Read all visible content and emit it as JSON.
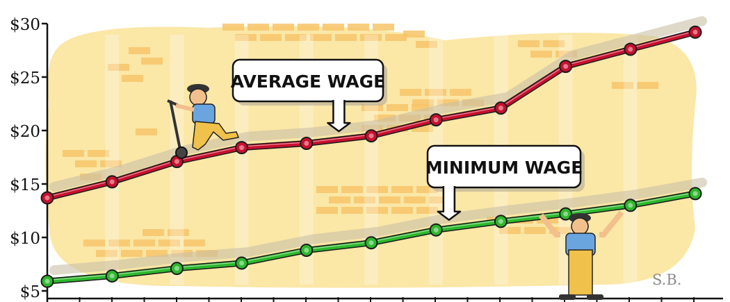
{
  "chart_data": {
    "type": "line",
    "x": [
      1,
      2,
      3,
      4,
      5,
      6,
      7,
      8,
      9,
      10,
      11
    ],
    "ylim": [
      5,
      30
    ],
    "yticks": [
      {
        "value": 5,
        "label": "$5"
      },
      {
        "value": 10,
        "label": "$10"
      },
      {
        "value": 15,
        "label": "$15"
      },
      {
        "value": 20,
        "label": "$20"
      },
      {
        "value": 25,
        "label": "$25"
      },
      {
        "value": 30,
        "label": "$30"
      }
    ],
    "grid": false,
    "series": [
      {
        "name": "AVERAGE WAGE",
        "color": "#c8102e",
        "values": [
          13.7,
          15.2,
          17.1,
          18.4,
          18.8,
          19.5,
          21.0,
          22.1,
          26.0,
          27.6,
          29.2
        ]
      },
      {
        "name": "MINIMUM WAGE",
        "color": "#2db82d",
        "values": [
          5.9,
          6.4,
          7.1,
          7.6,
          8.8,
          9.5,
          10.7,
          11.5,
          12.2,
          13.0,
          14.1
        ]
      }
    ],
    "annotations": [
      {
        "text": "AVERAGE WAGE",
        "series": "AVERAGE WAGE"
      },
      {
        "text": "MINIMUM WAGE",
        "series": "MINIMUM WAGE"
      }
    ],
    "signature": "S.B."
  },
  "colors": {
    "background_blob": "#fbe7a6",
    "brick": "#f6c46a",
    "shadow": "#c9bfa6",
    "axis": "#111111"
  }
}
